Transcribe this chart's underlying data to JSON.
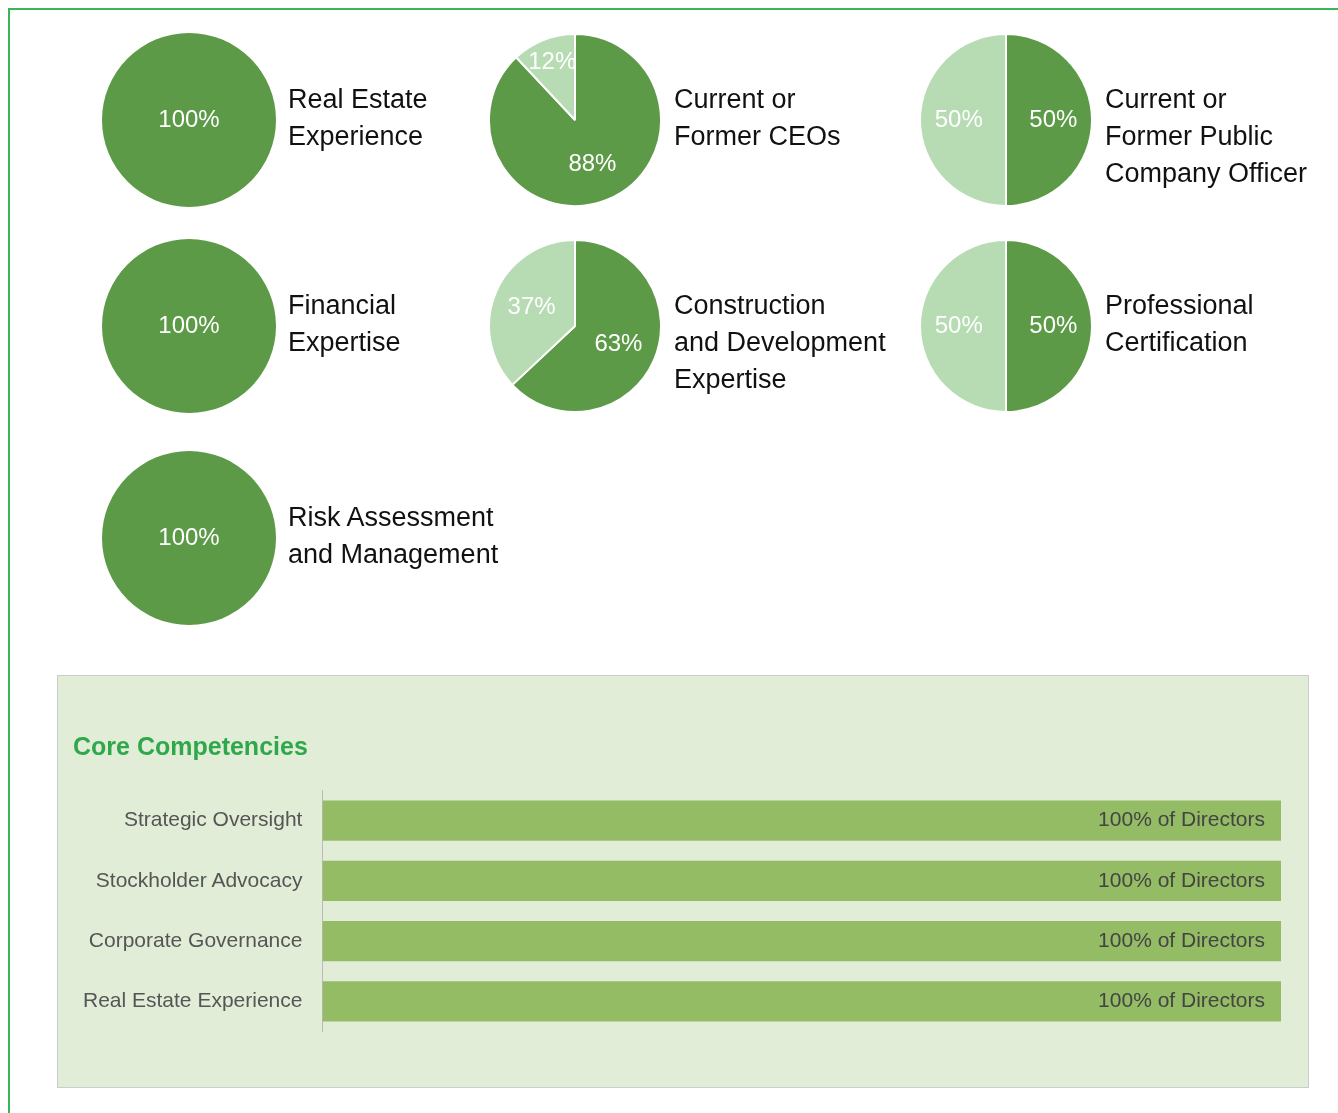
{
  "chart_data": [
    {
      "type": "pie",
      "title": "Real Estate\nExperience",
      "categories": [
        null
      ],
      "values": [
        100
      ],
      "colors": [
        "#5c9a48"
      ],
      "value_labels": [
        "100%"
      ]
    },
    {
      "type": "pie",
      "title": "Current or\nFormer CEOs",
      "categories": [
        null,
        null
      ],
      "values": [
        88,
        12
      ],
      "colors": [
        "#5c9a48",
        "#b7dcb4"
      ],
      "value_labels": [
        "88%",
        "12%"
      ]
    },
    {
      "type": "pie",
      "title": "Current or\nFormer Public\nCompany Officer",
      "categories": [
        null,
        null
      ],
      "values": [
        50,
        50
      ],
      "colors": [
        "#5c9a48",
        "#b7dcb4"
      ],
      "value_labels": [
        "50%",
        "50%"
      ]
    },
    {
      "type": "pie",
      "title": "Financial\nExpertise",
      "categories": [
        null
      ],
      "values": [
        100
      ],
      "colors": [
        "#5c9a48"
      ],
      "value_labels": [
        "100%"
      ]
    },
    {
      "type": "pie",
      "title": "Construction\nand Development\nExpertise",
      "categories": [
        null,
        null
      ],
      "values": [
        63,
        37
      ],
      "colors": [
        "#5c9a48",
        "#b7dcb4"
      ],
      "value_labels": [
        "63%",
        "37%"
      ]
    },
    {
      "type": "pie",
      "title": "Professional\nCertification",
      "categories": [
        null,
        null
      ],
      "values": [
        50,
        50
      ],
      "colors": [
        "#5c9a48",
        "#b7dcb4"
      ],
      "value_labels": [
        "50%",
        "50%"
      ]
    },
    {
      "type": "pie",
      "title": "Risk Assessment\nand Management",
      "categories": [
        null
      ],
      "values": [
        100
      ],
      "colors": [
        "#5c9a48"
      ],
      "value_labels": [
        "100%"
      ]
    },
    {
      "type": "bar",
      "orientation": "horizontal",
      "title": "Core Competencies",
      "categories": [
        "Strategic Oversight",
        "Stockholder Advocacy",
        "Corporate Governance",
        "Real Estate Experience"
      ],
      "values": [
        100,
        100,
        100,
        100
      ],
      "color": "#93bc64",
      "value_labels": [
        "100% of Directors",
        "100% of Directors",
        "100% of Directors",
        "100% of Directors"
      ],
      "tick_labels": "y"
    }
  ]
}
